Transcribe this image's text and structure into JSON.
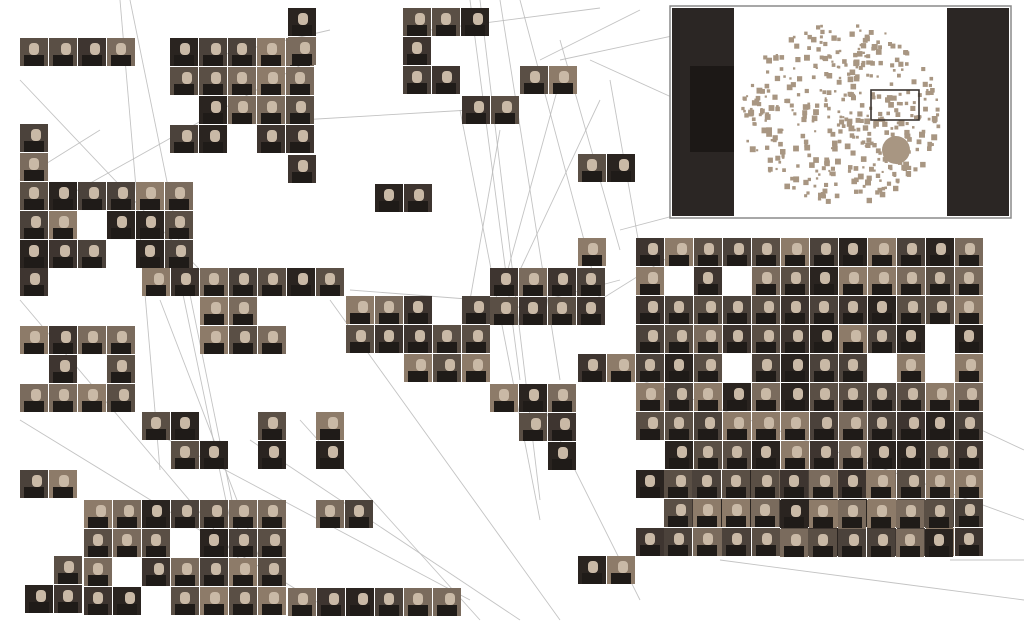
{
  "view": {
    "description_free": true,
    "background_color": "#ffffff",
    "edge_color": "#b9b9b9",
    "thumbnail_palette": [
      "#5a4f45",
      "#3e3530",
      "#7a6b5d",
      "#2a2420",
      "#8d7b69",
      "#4b423b"
    ]
  },
  "minimap": {
    "frame_color": "#8a8a8a",
    "side_bar_color": "#2b2624",
    "cloud_color": "#a89682"
  }
}
